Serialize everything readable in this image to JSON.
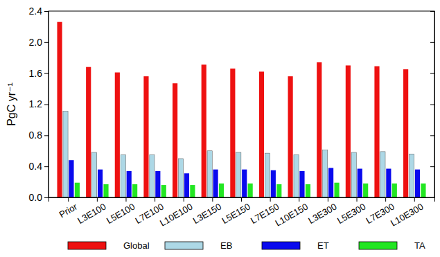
{
  "chart_data": {
    "type": "bar",
    "y_label": "PgC yr⁻¹",
    "categories": [
      "Prior",
      "L3E100",
      "L5E100",
      "L7E100",
      "L10E100",
      "L3E150",
      "L5E150",
      "L7E150",
      "L10E150",
      "L3E300",
      "L5E300",
      "L7E300",
      "L10E300"
    ],
    "series": [
      {
        "name": "Global",
        "color": "#ee1111",
        "values": [
          2.26,
          1.68,
          1.61,
          1.56,
          1.47,
          1.71,
          1.66,
          1.62,
          1.56,
          1.74,
          1.7,
          1.69,
          1.65
        ]
      },
      {
        "name": "EB",
        "color": "#add8e6",
        "values": [
          1.11,
          0.58,
          0.55,
          0.55,
          0.5,
          0.6,
          0.58,
          0.57,
          0.55,
          0.61,
          0.58,
          0.59,
          0.56
        ]
      },
      {
        "name": "ET",
        "color": "#0a0aee",
        "values": [
          0.48,
          0.36,
          0.34,
          0.34,
          0.31,
          0.36,
          0.36,
          0.35,
          0.34,
          0.38,
          0.37,
          0.37,
          0.36
        ]
      },
      {
        "name": "TA",
        "color": "#22e622",
        "values": [
          0.19,
          0.17,
          0.17,
          0.16,
          0.16,
          0.18,
          0.18,
          0.17,
          0.17,
          0.19,
          0.18,
          0.18,
          0.18
        ]
      }
    ],
    "ylim": [
      0,
      2.4
    ],
    "yticks": [
      {
        "value": 0,
        "label": "0.0"
      },
      {
        "value": 0.4,
        "label": "0.4"
      },
      {
        "value": 0.8,
        "label": "0.8"
      },
      {
        "value": 1.2,
        "label": "1.2"
      },
      {
        "value": 1.6,
        "label": "1.6"
      },
      {
        "value": 2.0,
        "label": "2.0"
      },
      {
        "value": 2.4,
        "label": "2.4"
      }
    ],
    "legend": "bottom",
    "grid": false
  }
}
